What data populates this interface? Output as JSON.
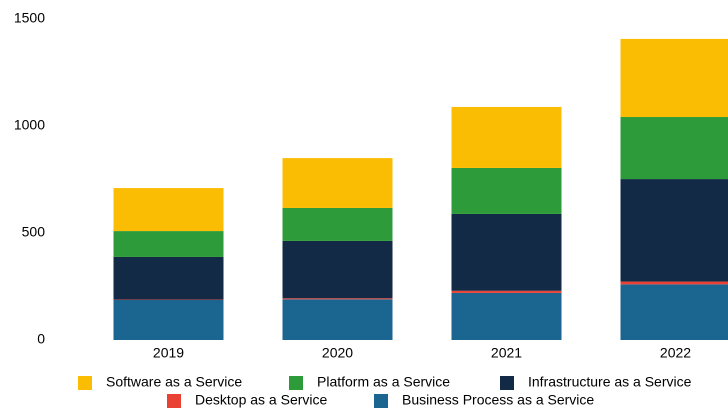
{
  "chart_data": {
    "type": "stacked_bar",
    "categories": [
      "2019",
      "2020",
      "2021",
      "2022"
    ],
    "series": [
      {
        "name": "Software as a Service",
        "color": "#fbbc04",
        "values": [
          201,
          233,
          285,
          365
        ]
      },
      {
        "name": "Platform as a Service",
        "color": "#2e9b3a",
        "values": [
          121,
          154,
          215,
          290
        ]
      },
      {
        "name": "Infrastructure as a Service",
        "color": "#132a47",
        "values": [
          199,
          268,
          359,
          479
        ]
      },
      {
        "name": "Desktop as a Service",
        "color": "#e94235",
        "values": [
          2,
          5,
          10,
          13
        ]
      },
      {
        "name": "Business Process as a Service",
        "color": "#1b6690",
        "values": [
          187,
          190,
          220,
          260
        ]
      }
    ],
    "ylim": [
      0,
      1500
    ],
    "yticks": [
      0,
      500,
      1000,
      1500
    ],
    "grid": false
  }
}
